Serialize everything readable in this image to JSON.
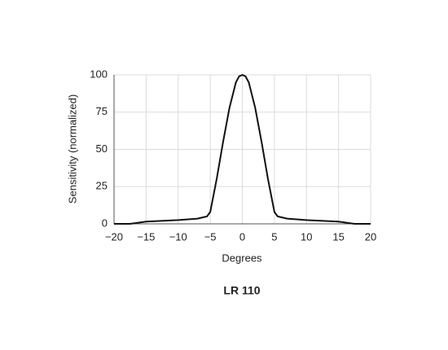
{
  "chart_data": {
    "type": "line",
    "title": "LR 110",
    "x_label": "Degrees",
    "y_label": "Sensitivity (normalized)",
    "x": [
      -20,
      -17.5,
      -15,
      -10,
      -7,
      -5.5,
      -5,
      -4,
      -3,
      -2,
      -1,
      -0.5,
      0,
      0.5,
      1,
      2,
      3,
      4,
      5,
      5.5,
      7,
      10,
      15,
      17.5,
      20
    ],
    "series": [
      {
        "name": "LR 110",
        "color": "#111111",
        "values": [
          0,
          0,
          1.5,
          2.5,
          3.5,
          5,
          8,
          30,
          55,
          78,
          95,
          99,
          100,
          99,
          95,
          78,
          55,
          30,
          8,
          5,
          3.5,
          2.5,
          1.5,
          0,
          0
        ]
      }
    ],
    "xlim": [
      -20,
      20
    ],
    "xticks": [
      {
        "value": -20,
        "label": "−20"
      },
      {
        "value": -15,
        "label": "−15"
      },
      {
        "value": -10,
        "label": "−10"
      },
      {
        "value": -5,
        "label": "−5"
      },
      0,
      5,
      10,
      15,
      20
    ],
    "ylim": [
      0,
      100
    ],
    "yticks": [
      0,
      25,
      50,
      75,
      100
    ],
    "grid": true
  }
}
